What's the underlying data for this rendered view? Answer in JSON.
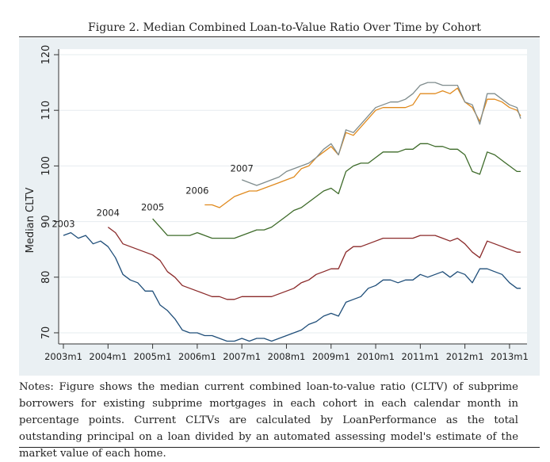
{
  "figure": {
    "title": "Figure 2. Median Combined Loan-to-Value Ratio Over Time by Cohort",
    "notes": "Notes: Figure shows the median current combined loan-to-value ratio (CLTV) of subprime borrowers for existing subprime mortgages in each cohort in each calendar month in percentage points. Current CLTVs are calculated by LoanPerformance as the total outstanding principal on a loan divided by an automated assessing model's estimate of the market value of each home."
  },
  "chart_data": {
    "type": "line",
    "ylabel": "Median CLTV",
    "xlabel": "",
    "ylim": [
      68,
      121
    ],
    "xlim": [
      "2003m1",
      "2013m4"
    ],
    "yticks": [
      70,
      80,
      90,
      100,
      110,
      120
    ],
    "xticks": [
      "2003m1",
      "2004m1",
      "2005m1",
      "2006m1",
      "2007m1",
      "2008m1",
      "2009m1",
      "2010m1",
      "2011m1",
      "2012m1",
      "2013m1"
    ],
    "grid": "horizontal",
    "legend": "none",
    "series": [
      {
        "name": "2003",
        "color": "#1f4e79",
        "points": [
          [
            "2003m1",
            87.5
          ],
          [
            "2003m3",
            88
          ],
          [
            "2003m5",
            87
          ],
          [
            "2003m7",
            87.5
          ],
          [
            "2003m9",
            86
          ],
          [
            "2003m11",
            86.5
          ],
          [
            "2004m1",
            85.5
          ],
          [
            "2004m3",
            83.5
          ],
          [
            "2004m5",
            80.5
          ],
          [
            "2004m7",
            79.5
          ],
          [
            "2004m9",
            79
          ],
          [
            "2004m11",
            77.5
          ],
          [
            "2005m1",
            77.5
          ],
          [
            "2005m3",
            75
          ],
          [
            "2005m5",
            74
          ],
          [
            "2005m7",
            72.5
          ],
          [
            "2005m9",
            70.5
          ],
          [
            "2005m11",
            70
          ],
          [
            "2006m1",
            70
          ],
          [
            "2006m3",
            69.5
          ],
          [
            "2006m5",
            69.5
          ],
          [
            "2006m7",
            69
          ],
          [
            "2006m9",
            68.5
          ],
          [
            "2006m11",
            68.5
          ],
          [
            "2007m1",
            69
          ],
          [
            "2007m3",
            68.5
          ],
          [
            "2007m5",
            69
          ],
          [
            "2007m7",
            69
          ],
          [
            "2007m9",
            68.5
          ],
          [
            "2007m11",
            69
          ],
          [
            "2008m1",
            69.5
          ],
          [
            "2008m3",
            70
          ],
          [
            "2008m5",
            70.5
          ],
          [
            "2008m7",
            71.5
          ],
          [
            "2008m9",
            72
          ],
          [
            "2008m11",
            73
          ],
          [
            "2009m1",
            73.5
          ],
          [
            "2009m3",
            73
          ],
          [
            "2009m5",
            75.5
          ],
          [
            "2009m7",
            76
          ],
          [
            "2009m9",
            76.5
          ],
          [
            "2009m11",
            78
          ],
          [
            "2010m1",
            78.5
          ],
          [
            "2010m3",
            79.5
          ],
          [
            "2010m5",
            79.5
          ],
          [
            "2010m7",
            79
          ],
          [
            "2010m9",
            79.5
          ],
          [
            "2010m11",
            79.5
          ],
          [
            "2011m1",
            80.5
          ],
          [
            "2011m3",
            80
          ],
          [
            "2011m5",
            80.5
          ],
          [
            "2011m7",
            81
          ],
          [
            "2011m9",
            80
          ],
          [
            "2011m11",
            81
          ],
          [
            "2012m1",
            80.5
          ],
          [
            "2012m3",
            79
          ],
          [
            "2012m5",
            81.5
          ],
          [
            "2012m7",
            81.5
          ],
          [
            "2012m9",
            81
          ],
          [
            "2012m11",
            80.5
          ],
          [
            "2013m1",
            79
          ],
          [
            "2013m3",
            78
          ],
          [
            "2013m4",
            78
          ]
        ]
      },
      {
        "name": "2004",
        "color": "#8b2a2a",
        "points": [
          [
            "2004m1",
            89
          ],
          [
            "2004m3",
            88
          ],
          [
            "2004m5",
            86
          ],
          [
            "2004m7",
            85.5
          ],
          [
            "2004m9",
            85
          ],
          [
            "2004m11",
            84.5
          ],
          [
            "2005m1",
            84
          ],
          [
            "2005m3",
            83
          ],
          [
            "2005m5",
            81
          ],
          [
            "2005m7",
            80
          ],
          [
            "2005m9",
            78.5
          ],
          [
            "2005m11",
            78
          ],
          [
            "2006m1",
            77.5
          ],
          [
            "2006m3",
            77
          ],
          [
            "2006m5",
            76.5
          ],
          [
            "2006m7",
            76.5
          ],
          [
            "2006m9",
            76
          ],
          [
            "2006m11",
            76
          ],
          [
            "2007m1",
            76.5
          ],
          [
            "2007m3",
            76.5
          ],
          [
            "2007m5",
            76.5
          ],
          [
            "2007m7",
            76.5
          ],
          [
            "2007m9",
            76.5
          ],
          [
            "2007m11",
            77
          ],
          [
            "2008m1",
            77.5
          ],
          [
            "2008m3",
            78
          ],
          [
            "2008m5",
            79
          ],
          [
            "2008m7",
            79.5
          ],
          [
            "2008m9",
            80.5
          ],
          [
            "2008m11",
            81
          ],
          [
            "2009m1",
            81.5
          ],
          [
            "2009m3",
            81.5
          ],
          [
            "2009m5",
            84.5
          ],
          [
            "2009m7",
            85.5
          ],
          [
            "2009m9",
            85.5
          ],
          [
            "2009m11",
            86
          ],
          [
            "2010m1",
            86.5
          ],
          [
            "2010m3",
            87
          ],
          [
            "2010m5",
            87
          ],
          [
            "2010m7",
            87
          ],
          [
            "2010m9",
            87
          ],
          [
            "2010m11",
            87
          ],
          [
            "2011m1",
            87.5
          ],
          [
            "2011m3",
            87.5
          ],
          [
            "2011m5",
            87.5
          ],
          [
            "2011m7",
            87
          ],
          [
            "2011m9",
            86.5
          ],
          [
            "2011m11",
            87
          ],
          [
            "2012m1",
            86
          ],
          [
            "2012m3",
            84.5
          ],
          [
            "2012m5",
            83.5
          ],
          [
            "2012m7",
            86.5
          ],
          [
            "2012m9",
            86
          ],
          [
            "2012m11",
            85.5
          ],
          [
            "2013m1",
            85
          ],
          [
            "2013m3",
            84.5
          ],
          [
            "2013m4",
            84.5
          ]
        ]
      },
      {
        "name": "2005",
        "color": "#3e6b2a",
        "points": [
          [
            "2005m1",
            90.5
          ],
          [
            "2005m3",
            89
          ],
          [
            "2005m5",
            87.5
          ],
          [
            "2005m7",
            87.5
          ],
          [
            "2005m9",
            87.5
          ],
          [
            "2005m11",
            87.5
          ],
          [
            "2006m1",
            88
          ],
          [
            "2006m3",
            87.5
          ],
          [
            "2006m5",
            87
          ],
          [
            "2006m7",
            87
          ],
          [
            "2006m9",
            87
          ],
          [
            "2006m11",
            87
          ],
          [
            "2007m1",
            87.5
          ],
          [
            "2007m3",
            88
          ],
          [
            "2007m5",
            88.5
          ],
          [
            "2007m7",
            88.5
          ],
          [
            "2007m9",
            89
          ],
          [
            "2007m11",
            90
          ],
          [
            "2008m1",
            91
          ],
          [
            "2008m3",
            92
          ],
          [
            "2008m5",
            92.5
          ],
          [
            "2008m7",
            93.5
          ],
          [
            "2008m9",
            94.5
          ],
          [
            "2008m11",
            95.5
          ],
          [
            "2009m1",
            96
          ],
          [
            "2009m3",
            95
          ],
          [
            "2009m5",
            99
          ],
          [
            "2009m7",
            100
          ],
          [
            "2009m9",
            100.5
          ],
          [
            "2009m11",
            100.5
          ],
          [
            "2010m1",
            101.5
          ],
          [
            "2010m3",
            102.5
          ],
          [
            "2010m5",
            102.5
          ],
          [
            "2010m7",
            102.5
          ],
          [
            "2010m9",
            103
          ],
          [
            "2010m11",
            103
          ],
          [
            "2011m1",
            104
          ],
          [
            "2011m3",
            104
          ],
          [
            "2011m5",
            103.5
          ],
          [
            "2011m7",
            103.5
          ],
          [
            "2011m9",
            103
          ],
          [
            "2011m11",
            103
          ],
          [
            "2012m1",
            102
          ],
          [
            "2012m3",
            99
          ],
          [
            "2012m5",
            98.5
          ],
          [
            "2012m7",
            102.5
          ],
          [
            "2012m9",
            102
          ],
          [
            "2012m11",
            101
          ],
          [
            "2013m1",
            100
          ],
          [
            "2013m3",
            99
          ],
          [
            "2013m4",
            99
          ]
        ]
      },
      {
        "name": "2006",
        "color": "#e08a1e",
        "points": [
          [
            "2006m3",
            93
          ],
          [
            "2006m5",
            93
          ],
          [
            "2006m7",
            92.5
          ],
          [
            "2006m9",
            93.5
          ],
          [
            "2006m11",
            94.5
          ],
          [
            "2007m1",
            95
          ],
          [
            "2007m3",
            95.5
          ],
          [
            "2007m5",
            95.5
          ],
          [
            "2007m7",
            96
          ],
          [
            "2007m9",
            96.5
          ],
          [
            "2007m11",
            97
          ],
          [
            "2008m1",
            97.5
          ],
          [
            "2008m3",
            98
          ],
          [
            "2008m5",
            99.5
          ],
          [
            "2008m7",
            100
          ],
          [
            "2008m9",
            101.5
          ],
          [
            "2008m11",
            102.5
          ],
          [
            "2009m1",
            103.5
          ],
          [
            "2009m3",
            102
          ],
          [
            "2009m5",
            106
          ],
          [
            "2009m7",
            105.5
          ],
          [
            "2009m9",
            107
          ],
          [
            "2009m11",
            108.5
          ],
          [
            "2010m1",
            110
          ],
          [
            "2010m3",
            110.5
          ],
          [
            "2010m5",
            110.5
          ],
          [
            "2010m7",
            110.5
          ],
          [
            "2010m9",
            110.5
          ],
          [
            "2010m11",
            111
          ],
          [
            "2011m1",
            113
          ],
          [
            "2011m3",
            113
          ],
          [
            "2011m5",
            113
          ],
          [
            "2011m7",
            113.5
          ],
          [
            "2011m9",
            113
          ],
          [
            "2011m11",
            114
          ],
          [
            "2012m1",
            111.5
          ],
          [
            "2012m3",
            110.5
          ],
          [
            "2012m5",
            108
          ],
          [
            "2012m7",
            112
          ],
          [
            "2012m9",
            112
          ],
          [
            "2012m11",
            111.5
          ],
          [
            "2013m1",
            110.5
          ],
          [
            "2013m3",
            110
          ],
          [
            "2013m4",
            109
          ]
        ]
      },
      {
        "name": "2007",
        "color": "#7f8c8d",
        "points": [
          [
            "2007m1",
            97.5
          ],
          [
            "2007m3",
            97
          ],
          [
            "2007m5",
            96.5
          ],
          [
            "2007m7",
            97
          ],
          [
            "2007m9",
            97.5
          ],
          [
            "2007m11",
            98
          ],
          [
            "2008m1",
            99
          ],
          [
            "2008m3",
            99.5
          ],
          [
            "2008m5",
            100
          ],
          [
            "2008m7",
            100.5
          ],
          [
            "2008m9",
            101.5
          ],
          [
            "2008m11",
            103
          ],
          [
            "2009m1",
            104
          ],
          [
            "2009m3",
            102
          ],
          [
            "2009m5",
            106.5
          ],
          [
            "2009m7",
            106
          ],
          [
            "2009m9",
            107.5
          ],
          [
            "2009m11",
            109
          ],
          [
            "2010m1",
            110.5
          ],
          [
            "2010m3",
            111
          ],
          [
            "2010m5",
            111.5
          ],
          [
            "2010m7",
            111.5
          ],
          [
            "2010m9",
            112
          ],
          [
            "2010m11",
            113
          ],
          [
            "2011m1",
            114.5
          ],
          [
            "2011m3",
            115
          ],
          [
            "2011m5",
            115
          ],
          [
            "2011m7",
            114.5
          ],
          [
            "2011m9",
            114.5
          ],
          [
            "2011m11",
            114.5
          ],
          [
            "2012m1",
            111.5
          ],
          [
            "2012m3",
            111
          ],
          [
            "2012m5",
            107.5
          ],
          [
            "2012m7",
            113
          ],
          [
            "2012m9",
            113
          ],
          [
            "2012m11",
            112
          ],
          [
            "2013m1",
            111
          ],
          [
            "2013m3",
            110.5
          ],
          [
            "2013m4",
            108.5
          ]
        ]
      }
    ],
    "annotations": [
      {
        "text": "2003",
        "x": "2003m1",
        "y": 89
      },
      {
        "text": "2004",
        "x": "2004m1",
        "y": 91
      },
      {
        "text": "2005",
        "x": "2005m1",
        "y": 92
      },
      {
        "text": "2006",
        "x": "2006m1",
        "y": 95
      },
      {
        "text": "2007",
        "x": "2007m1",
        "y": 99
      }
    ]
  }
}
